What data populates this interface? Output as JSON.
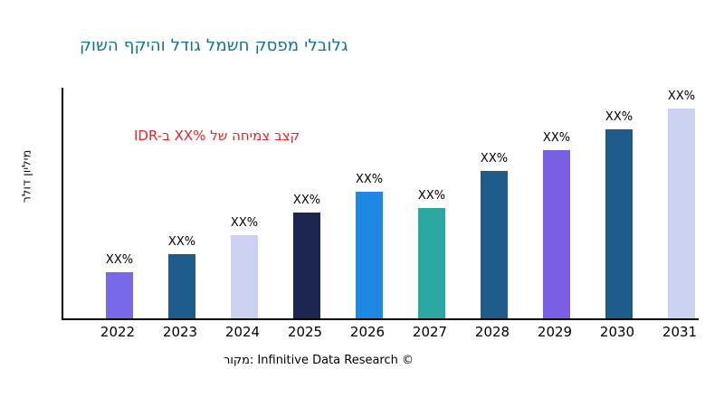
{
  "chart_data": {
    "type": "bar",
    "title": "קושה ףקיהו לדוג למשח קספמ ילבולג",
    "ylabel": "רלוד ןוילימ",
    "annotation": "IDR-ב XX% לש החימצ בצק",
    "caption": "רוקמ: Infinitive Data Research ©",
    "categories": [
      "2022",
      "2023",
      "2024",
      "2025",
      "2026",
      "2027",
      "2028",
      "2029",
      "2030",
      "2031"
    ],
    "values": [
      20,
      28,
      36,
      46,
      55,
      48,
      64,
      73,
      82,
      91
    ],
    "bar_labels": [
      "XX%",
      "XX%",
      "XX%",
      "XX%",
      "XX%",
      "XX%",
      "XX%",
      "XX%",
      "XX%",
      "XX%"
    ],
    "bar_colors": [
      "#7668E8",
      "#1F5C8B",
      "#CDD2F2",
      "#1B2550",
      "#1E88E5",
      "#2BA8A2",
      "#1F5C8B",
      "#7A5FE6",
      "#1F5C8B",
      "#CDD2F2"
    ],
    "ylim": [
      0,
      100
    ],
    "y_tick_labels": [],
    "grid": false,
    "legend": false,
    "title_color": "#0E7490",
    "annotation_color": "#E9242B",
    "axis_color": "#000000"
  }
}
